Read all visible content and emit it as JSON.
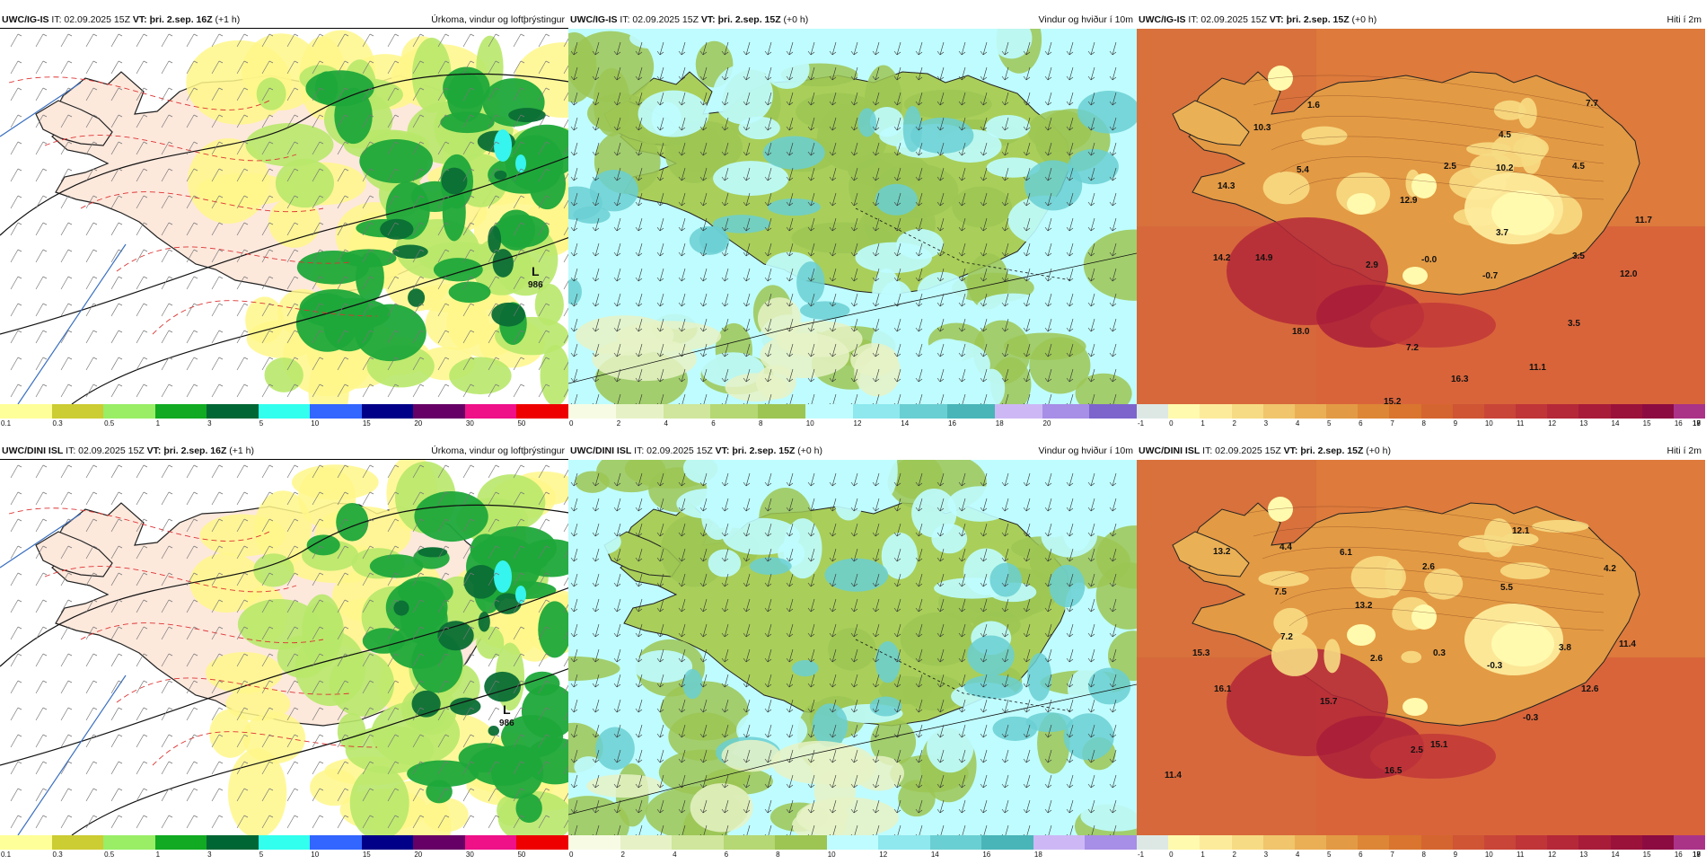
{
  "panels": [
    {
      "id": "p1",
      "type": "precip",
      "model": "UWC/IG-IS",
      "it": "IT: 02.09.2025 15Z",
      "vt_label": "VT:",
      "vt": "þri. 2.sep. 16Z",
      "lead": "(+1 h)",
      "title": "Úrkoma, vindur og loftþrýstingur",
      "low_label": "L",
      "low_value": "986"
    },
    {
      "id": "p2",
      "type": "wind",
      "model": "UWC/IG-IS",
      "it": "IT: 02.09.2025 15Z",
      "vt_label": "VT:",
      "vt": "þri. 2.sep. 15Z",
      "lead": "(+0 h)",
      "title": "Vindur og hviður í 10m"
    },
    {
      "id": "p3",
      "type": "temp",
      "model": "UWC/IG-IS",
      "it": "IT: 02.09.2025 15Z",
      "vt_label": "VT:",
      "vt": "þri. 2.sep. 15Z",
      "lead": "(+0 h)",
      "title": "Hiti í 2m",
      "labels": [
        "1.6",
        "7.7",
        "10.3",
        "4.5",
        "5.4",
        "2.5",
        "10.2",
        "4.5",
        "14.3",
        "12.9",
        "11.7",
        "3.7",
        "14.2",
        "14.9",
        "2.9",
        "-0.0",
        "3.5",
        "12.0",
        "-0.7",
        "18.0",
        "3.5",
        "7.2",
        "11.1",
        "16.3",
        "15.2"
      ]
    },
    {
      "id": "p4",
      "type": "precip",
      "model": "UWC/DINI ISL",
      "it": "IT: 02.09.2025 15Z",
      "vt_label": "VT:",
      "vt": "þri. 2.sep. 16Z",
      "lead": "(+1 h)",
      "title": "Úrkoma, vindur og loftþrýstingur",
      "low_label": "L",
      "low_value": "986"
    },
    {
      "id": "p5",
      "type": "wind",
      "model": "UWC/DINI ISL",
      "it": "IT: 02.09.2025 15Z",
      "vt_label": "VT:",
      "vt": "þri. 2.sep. 15Z",
      "lead": "(+0 h)",
      "title": "Vindur og hviður í 10m"
    },
    {
      "id": "p6",
      "type": "temp",
      "model": "UWC/DINI ISL",
      "it": "IT: 02.09.2025 15Z",
      "vt_label": "VT:",
      "vt": "þri. 2.sep. 15Z",
      "lead": "(+0 h)",
      "title": "Hiti í 2m",
      "labels": [
        "12.1",
        "13.2",
        "4.4",
        "6.1",
        "2.6",
        "4.2",
        "7.5",
        "5.5",
        "13.2",
        "7.2",
        "15.3",
        "2.6",
        "0.3",
        "3.8",
        "11.4",
        "-0.3",
        "16.1",
        "15.7",
        "12.6",
        "-0.3",
        "15.1",
        "2.5",
        "16.5",
        "11.4"
      ]
    }
  ],
  "legends": {
    "precip": {
      "colors": [
        "#ffff99",
        "#cccc33",
        "#99ee66",
        "#11aa22",
        "#006633",
        "#33ffee",
        "#3366ff",
        "#000088",
        "#660066",
        "#ee1188",
        "#ee0000"
      ],
      "ticks": [
        "0.1",
        "0.3",
        "0.5",
        "1",
        "3",
        "5",
        "10",
        "15",
        "20",
        "30",
        "50"
      ]
    },
    "wind_top": {
      "colors": [
        "#f7fbe4",
        "#e6f2c6",
        "#cfe69c",
        "#b5d774",
        "#9cc553",
        "#bffcff",
        "#8ee8ee",
        "#6acfd2",
        "#49b5b8",
        "#cdb8f5",
        "#a78ee6",
        "#7d64cc"
      ],
      "ticks": [
        "0",
        "2",
        "4",
        "6",
        "8",
        "10",
        "12",
        "14",
        "16",
        "18",
        "20"
      ]
    },
    "wind_bot": {
      "colors": [
        "#f7fbe4",
        "#e6f2c6",
        "#cfe69c",
        "#b5d774",
        "#9cc553",
        "#bffcff",
        "#8ee8ee",
        "#6acfd2",
        "#49b5b8",
        "#cdb8f5",
        "#a78ee6"
      ],
      "ticks": [
        "0",
        "2",
        "4",
        "6",
        "8",
        "10",
        "12",
        "14",
        "16",
        "18"
      ]
    },
    "temp": {
      "colors": [
        "#dde8e4",
        "#fffaae",
        "#fdeb9c",
        "#f7db84",
        "#f0c56c",
        "#eaaf55",
        "#e39a44",
        "#dd8635",
        "#d9752e",
        "#d56530",
        "#cf5535",
        "#c84538",
        "#bf3538",
        "#b42838",
        "#a81c3a",
        "#9a123a",
        "#8c0b40",
        "#aa3388"
      ],
      "ticks": [
        "-1",
        "0",
        "1",
        "2",
        "3",
        "4",
        "5",
        "6",
        "7",
        "8",
        "9",
        "10",
        "11",
        "12",
        "13",
        "14",
        "15",
        "16",
        "17",
        "18",
        "19"
      ]
    }
  }
}
